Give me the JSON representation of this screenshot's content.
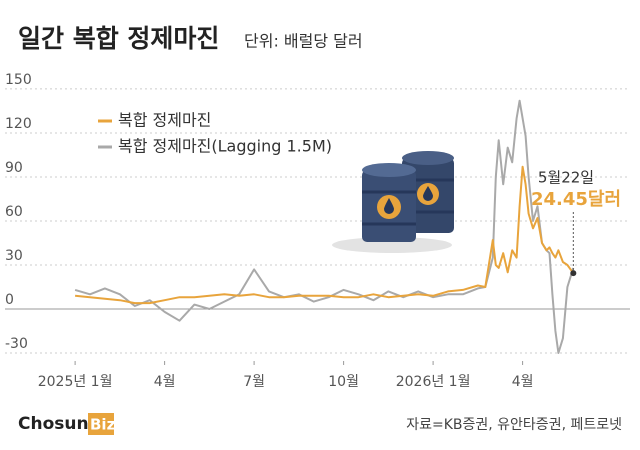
{
  "chart_data": {
    "type": "line",
    "title": "일간 복합 정제마진",
    "subtitle": "단위: 배럴당 달러",
    "x": [
      0,
      0.5,
      1,
      1.5,
      2,
      2.5,
      3,
      3.5,
      4,
      4.5,
      5,
      5.5,
      6,
      6.5,
      7,
      7.5,
      8,
      8.5,
      9,
      9.5,
      10,
      10.5,
      11,
      11.5,
      12,
      12.5,
      13,
      13.5,
      13.75,
      14,
      14.1,
      14.2,
      14.35,
      14.5,
      14.65,
      14.8,
      14.9,
      15,
      15.1,
      15.2,
      15.35,
      15.5,
      15.65,
      15.8,
      15.9,
      16,
      16.1,
      16.2,
      16.35,
      16.5,
      16.7
    ],
    "series": [
      {
        "name": "복합 정제마진",
        "color": "#e8a43c",
        "values": [
          9,
          8,
          7,
          6,
          4,
          4,
          6,
          8,
          8,
          9,
          10,
          9,
          10,
          8,
          8,
          9,
          9,
          9,
          8,
          8,
          10,
          8,
          9,
          10,
          9,
          12,
          13,
          16,
          15,
          47,
          30,
          28,
          38,
          25,
          40,
          35,
          70,
          97,
          85,
          65,
          55,
          62,
          45,
          40,
          42,
          38,
          35,
          40,
          32,
          30,
          24.45
        ]
      },
      {
        "name": "복합 정제마진(Lagging 1.5M)",
        "color": "#a9a9a9",
        "values": [
          13,
          10,
          14,
          10,
          2,
          6,
          -2,
          -8,
          3,
          0,
          5,
          10,
          27,
          12,
          8,
          10,
          5,
          8,
          13,
          10,
          6,
          12,
          8,
          12,
          8,
          10,
          10,
          14,
          15,
          35,
          90,
          115,
          85,
          110,
          100,
          130,
          142,
          130,
          118,
          90,
          60,
          70,
          45,
          40,
          38,
          10,
          -15,
          -30,
          -20,
          15,
          28
        ]
      }
    ],
    "xlim": [
      -2.35,
      18.6
    ],
    "xticks": [
      {
        "value": 0,
        "label": "2025년 1월"
      },
      {
        "value": 3,
        "label": "4월"
      },
      {
        "value": 6,
        "label": "7월"
      },
      {
        "value": 9,
        "label": "10월"
      },
      {
        "value": 12,
        "label": "2026년 1월"
      },
      {
        "value": 15,
        "label": "4월"
      }
    ],
    "ylim": [
      -38.2,
      159.5
    ],
    "yticks": [
      -30,
      0,
      30,
      60,
      90,
      120,
      150
    ],
    "grid": true,
    "annotation": {
      "date": "5월22일",
      "value_label": "24.45달러"
    },
    "source": "자료=KB증권, 유안타증권, 페트로넷",
    "logo": {
      "main": "Chosun",
      "accent": "Biz"
    }
  }
}
